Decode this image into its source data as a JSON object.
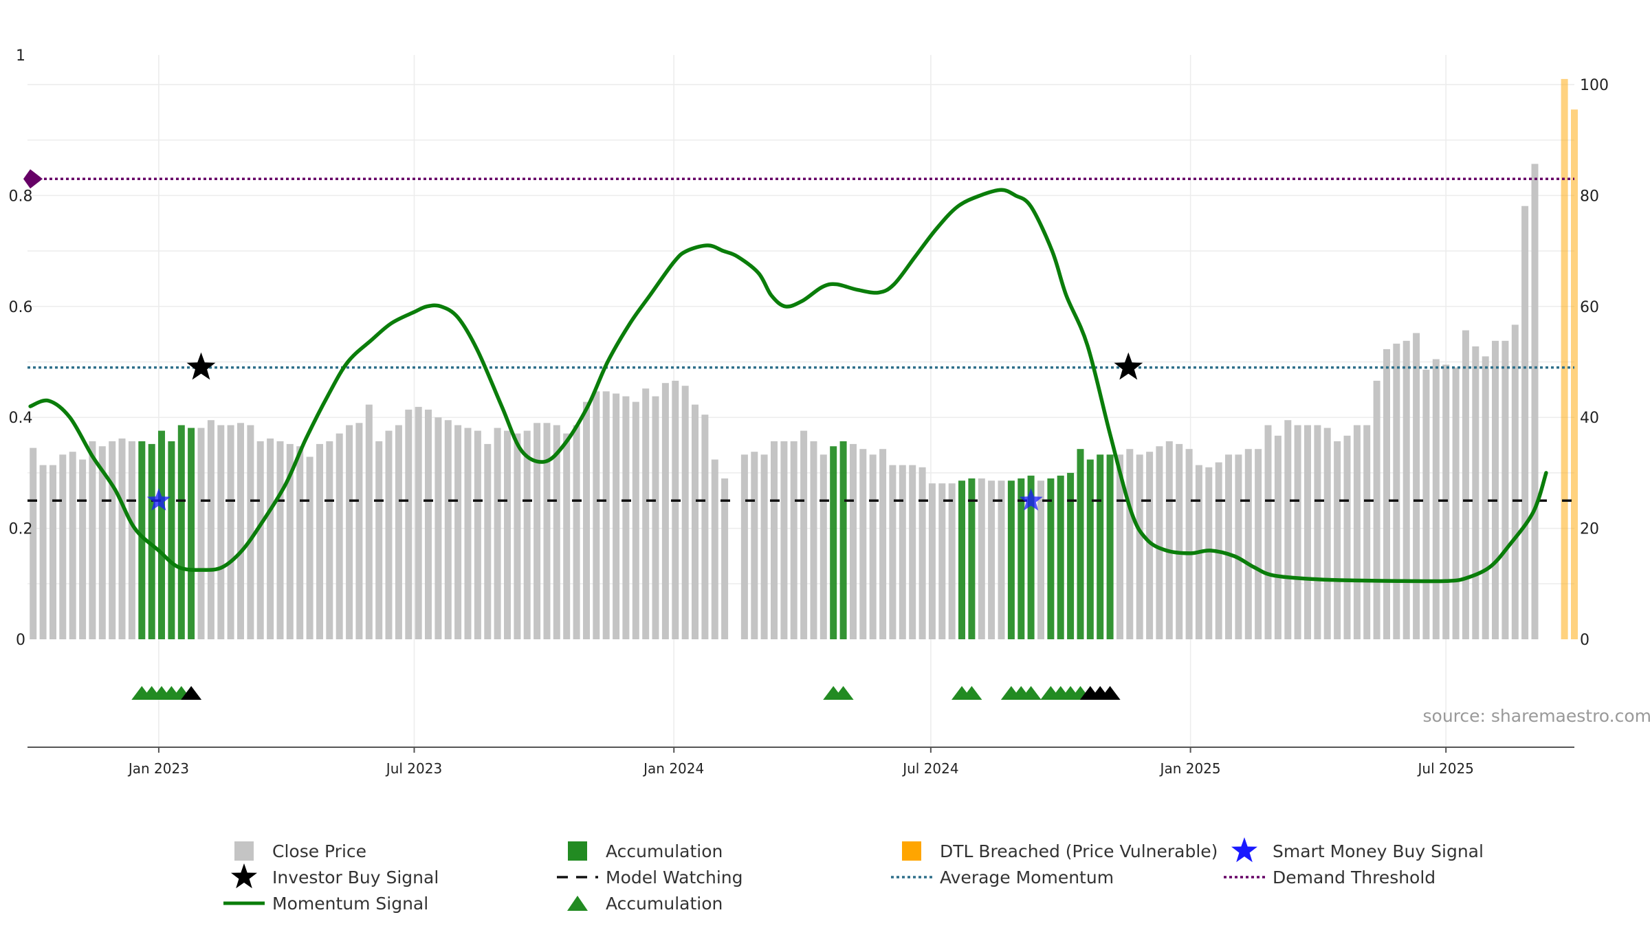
{
  "chart_data": {
    "type": "bar",
    "title": "",
    "source": "source: sharemaestro.com",
    "left_axis": {
      "ticks": [
        0,
        0.2,
        0.4,
        0.6,
        0.8
      ],
      "top_label": "1",
      "tick_labels": [
        "0",
        "0.2",
        "0.4",
        "0.6",
        "0.8"
      ],
      "ylim": [
        0,
        1
      ]
    },
    "right_axis": {
      "ticks": [
        0,
        20,
        40,
        60,
        80,
        100
      ],
      "tick_labels": [
        "0",
        "20",
        "40",
        "60",
        "80",
        "100"
      ],
      "ylim": [
        0,
        100
      ]
    },
    "x_axis": {
      "start": "2022-09-30",
      "end": "2025-09-30",
      "ticks": [
        {
          "date": "2023-01-01",
          "label": "Jan 2023"
        },
        {
          "date": "2023-07-01",
          "label": "Jul 2023"
        },
        {
          "date": "2024-01-01",
          "label": "Jan 2024"
        },
        {
          "date": "2024-07-01",
          "label": "Jul 2024"
        },
        {
          "date": "2025-01-01",
          "label": "Jan 2025"
        },
        {
          "date": "2025-07-01",
          "label": "Jul 2025"
        }
      ]
    },
    "close_price": {
      "start": "2022-10-04",
      "step_days": 7,
      "values": [
        34.5,
        31.4,
        31.4,
        33.3,
        33.8,
        32.4,
        35.7,
        34.8,
        35.7,
        36.2,
        35.7,
        35.7,
        35.2,
        37.6,
        35.7,
        38.6,
        38.1,
        38.1,
        39.5,
        38.6,
        38.6,
        39.0,
        38.6,
        35.7,
        36.2,
        35.7,
        35.2,
        34.8,
        32.9,
        35.2,
        35.7,
        37.1,
        38.6,
        39.0,
        42.3,
        35.7,
        37.6,
        38.6,
        41.4,
        41.9,
        41.4,
        40.0,
        39.5,
        38.6,
        38.1,
        37.6,
        35.2,
        38.1,
        37.6,
        37.1,
        37.6,
        39.0,
        39.0,
        38.6,
        37.1,
        38.6,
        42.8,
        44.7,
        44.7,
        44.3,
        43.8,
        42.8,
        45.2,
        43.8,
        46.2,
        46.6,
        45.7,
        42.3,
        40.5,
        32.4,
        29.0,
        null,
        33.3,
        33.8,
        33.3,
        35.7,
        35.7,
        35.7,
        37.6,
        35.7,
        33.3,
        34.8,
        35.7,
        35.2,
        34.3,
        33.3,
        34.3,
        31.4,
        31.4,
        31.4,
        31.0,
        28.1,
        28.1,
        28.1,
        28.6,
        29.0,
        29.0,
        28.6,
        28.6,
        28.6,
        29.0,
        29.5,
        28.6,
        29.0,
        29.5,
        30.0,
        34.3,
        32.4,
        33.3,
        33.3,
        33.3,
        34.3,
        33.3,
        33.8,
        34.8,
        35.7,
        35.2,
        34.3,
        31.4,
        31.0,
        31.9,
        33.3,
        33.3,
        34.3,
        34.3,
        38.6,
        36.7,
        39.5,
        38.6,
        38.6,
        38.6,
        38.1,
        35.7,
        36.7,
        38.6,
        38.6,
        46.6,
        52.3,
        53.3,
        53.8,
        55.2,
        48.6,
        50.5,
        49.5,
        49.0,
        55.7,
        52.8,
        51.0,
        53.8,
        53.8,
        56.7,
        78.1,
        85.7
      ]
    },
    "accumulation_bars": {
      "indices": [
        11,
        12,
        13,
        14,
        15,
        16,
        81,
        82,
        94,
        95,
        99,
        100,
        101,
        103,
        104,
        105,
        106,
        107,
        108,
        109
      ],
      "color": "#228B22"
    },
    "dtl_breached_bars": {
      "values": [
        101.0,
        95.5
      ],
      "dates": [
        "2025-09-23",
        "2025-09-30"
      ],
      "color": "#FFA500"
    },
    "momentum_signal": {
      "color": "#0a7d0a",
      "points": [
        [
          "2022-10-02",
          0.42
        ],
        [
          "2022-10-15",
          0.43
        ],
        [
          "2022-10-30",
          0.4
        ],
        [
          "2022-11-15",
          0.33
        ],
        [
          "2022-12-01",
          0.27
        ],
        [
          "2022-12-15",
          0.2
        ],
        [
          "2023-01-01",
          0.16
        ],
        [
          "2023-01-15",
          0.13
        ],
        [
          "2023-02-01",
          0.125
        ],
        [
          "2023-02-15",
          0.13
        ],
        [
          "2023-03-01",
          0.16
        ],
        [
          "2023-03-15",
          0.21
        ],
        [
          "2023-04-01",
          0.28
        ],
        [
          "2023-04-15",
          0.36
        ],
        [
          "2023-05-01",
          0.44
        ],
        [
          "2023-05-15",
          0.5
        ],
        [
          "2023-06-01",
          0.54
        ],
        [
          "2023-06-15",
          0.57
        ],
        [
          "2023-07-01",
          0.59
        ],
        [
          "2023-07-10",
          0.6
        ],
        [
          "2023-07-20",
          0.6
        ],
        [
          "2023-08-01",
          0.58
        ],
        [
          "2023-08-15",
          0.52
        ],
        [
          "2023-09-01",
          0.42
        ],
        [
          "2023-09-15",
          0.34
        ],
        [
          "2023-10-01",
          0.32
        ],
        [
          "2023-10-15",
          0.35
        ],
        [
          "2023-11-01",
          0.42
        ],
        [
          "2023-11-15",
          0.5
        ],
        [
          "2023-12-01",
          0.57
        ],
        [
          "2023-12-15",
          0.62
        ],
        [
          "2024-01-01",
          0.68
        ],
        [
          "2024-01-10",
          0.7
        ],
        [
          "2024-01-25",
          0.71
        ],
        [
          "2024-02-05",
          0.7
        ],
        [
          "2024-02-15",
          0.69
        ],
        [
          "2024-03-01",
          0.66
        ],
        [
          "2024-03-10",
          0.62
        ],
        [
          "2024-03-20",
          0.6
        ],
        [
          "2024-04-01",
          0.61
        ],
        [
          "2024-04-15",
          0.635
        ],
        [
          "2024-04-25",
          0.64
        ],
        [
          "2024-05-10",
          0.63
        ],
        [
          "2024-05-25",
          0.625
        ],
        [
          "2024-06-05",
          0.64
        ],
        [
          "2024-06-20",
          0.69
        ],
        [
          "2024-07-05",
          0.74
        ],
        [
          "2024-07-20",
          0.78
        ],
        [
          "2024-08-05",
          0.8
        ],
        [
          "2024-08-20",
          0.81
        ],
        [
          "2024-08-30",
          0.8
        ],
        [
          "2024-09-10",
          0.78
        ],
        [
          "2024-09-25",
          0.7
        ],
        [
          "2024-10-05",
          0.62
        ],
        [
          "2024-10-20",
          0.53
        ],
        [
          "2024-11-05",
          0.37
        ],
        [
          "2024-11-20",
          0.23
        ],
        [
          "2024-12-01",
          0.18
        ],
        [
          "2024-12-15",
          0.16
        ],
        [
          "2025-01-01",
          0.155
        ],
        [
          "2025-01-15",
          0.16
        ],
        [
          "2025-02-01",
          0.15
        ],
        [
          "2025-02-15",
          0.13
        ],
        [
          "2025-03-01",
          0.115
        ],
        [
          "2025-04-01",
          0.108
        ],
        [
          "2025-05-01",
          0.106
        ],
        [
          "2025-06-01",
          0.105
        ],
        [
          "2025-07-01",
          0.105
        ],
        [
          "2025-07-15",
          0.11
        ],
        [
          "2025-08-01",
          0.13
        ],
        [
          "2025-08-15",
          0.17
        ],
        [
          "2025-09-01",
          0.23
        ],
        [
          "2025-09-10",
          0.3
        ]
      ]
    },
    "investor_buy_signals": [
      {
        "date": "2023-01-31",
        "value": 0.49
      },
      {
        "date": "2024-11-18",
        "value": 0.49
      }
    ],
    "smart_money_buy_signals": [
      {
        "date": "2023-01-01",
        "value": 0.25
      },
      {
        "date": "2024-09-10",
        "value": 0.25
      }
    ],
    "model_watching_level": 0.25,
    "average_momentum_level": 0.49,
    "demand_threshold_level": 0.83,
    "accumulation_triangle_indices": [
      11,
      12,
      13,
      14,
      15,
      81,
      82,
      94,
      95,
      99,
      100,
      101,
      103,
      104,
      105,
      106
    ],
    "black_triangle_indices": [
      16,
      107,
      108,
      109
    ],
    "legend": [
      {
        "label": "Close Price",
        "symbol": "grey-square"
      },
      {
        "label": "Accumulation",
        "symbol": "green-square"
      },
      {
        "label": "DTL Breached (Price Vulnerable)",
        "symbol": "orange-square"
      },
      {
        "label": "Smart Money Buy Signal",
        "symbol": "blue-star"
      },
      {
        "label": "Investor Buy Signal",
        "symbol": "black-star"
      },
      {
        "label": "Model Watching",
        "symbol": "black-dash"
      },
      {
        "label": "Average Momentum",
        "symbol": "blue-dot"
      },
      {
        "label": "Demand Threshold",
        "symbol": "purple-dot"
      },
      {
        "label": "Momentum Signal",
        "symbol": "green-line"
      },
      {
        "label": "Accumulation",
        "symbol": "green-triangle"
      }
    ],
    "colors": {
      "price_bar": "#c4c4c4",
      "accumulation": "#228B22",
      "dtl": "#FFA500",
      "momentum": "#0a7d0a",
      "avg_momentum": "#2e6f8a",
      "demand": "#660066",
      "smart_money": "#1a1aff",
      "grid": "#ececec",
      "axis": "#555555"
    }
  }
}
